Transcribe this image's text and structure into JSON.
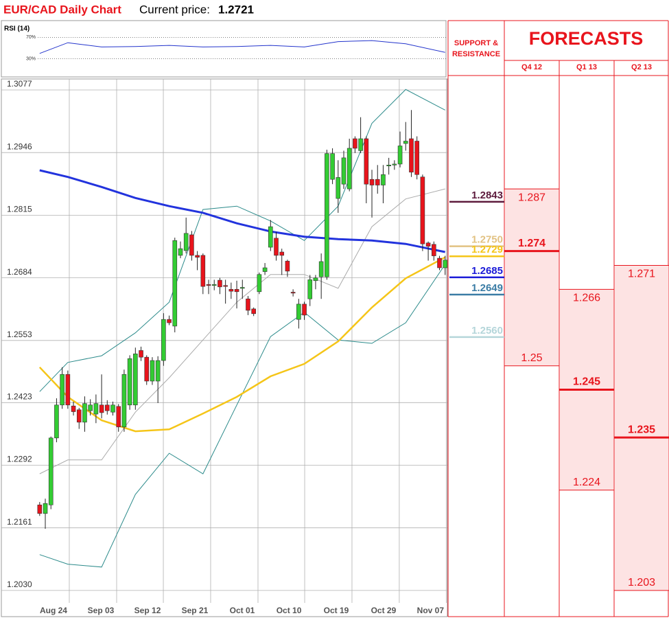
{
  "header": {
    "title": "EUR/CAD Daily Chart",
    "price_label": "Current price:",
    "price": 1.2721
  },
  "chart_data": [
    {
      "type": "line",
      "title": "RSI (14)",
      "x": [
        0,
        5,
        11,
        17,
        23,
        29,
        35,
        41,
        47,
        53,
        59,
        65,
        72
      ],
      "series": [
        {
          "color": "#2233cc",
          "values": [
            40,
            60,
            52,
            53,
            55,
            52,
            53,
            55,
            52,
            62,
            64,
            58,
            42
          ]
        }
      ],
      "xlim": [
        -6.8,
        72.4
      ],
      "ylim": [
        0,
        100
      ],
      "yticks": [
        {
          "value": 70,
          "label": "70%"
        },
        {
          "value": 30,
          "label": "30%"
        }
      ]
    },
    {
      "type": "candlestick",
      "open": [
        1.2209,
        1.2191,
        1.2209,
        1.2349,
        1.2418,
        1.2482,
        1.2416,
        1.2408,
        1.2382,
        1.2406,
        1.2399,
        1.2418,
        1.2418,
        1.2403,
        1.2415,
        1.2372,
        1.2418,
        1.2418,
        1.2532,
        1.2518,
        1.2468,
        1.2468,
        1.2511,
        1.2597,
        1.2583,
        1.2731,
        1.2741,
        1.2774,
        1.2731,
        1.2731,
        1.267,
        1.2668,
        1.2679,
        1.2668,
        1.266,
        1.266,
        1.2662,
        1.264,
        1.2619,
        1.2655,
        1.2697,
        1.2748,
        1.2767,
        1.2738,
        1.2719,
        1.2654,
        1.2597,
        1.2629,
        1.264,
        1.2678,
        1.2686,
        1.2686,
        1.289,
        1.285,
        1.288,
        1.287,
        1.2975,
        1.295,
        1.2975,
        1.289,
        1.289,
        1.2878,
        1.2918,
        1.292,
        1.2922,
        1.2965,
        1.2975,
        1.297,
        1.2895,
        1.2757,
        1.2754,
        1.2725,
        1.2705
      ],
      "high": [
        1.2215,
        1.2222,
        1.2352,
        1.2432,
        1.2497,
        1.249,
        1.2425,
        1.2412,
        1.2436,
        1.243,
        1.244,
        1.2482,
        1.2428,
        1.2425,
        1.242,
        1.2492,
        1.2522,
        1.2538,
        1.254,
        1.2522,
        1.2518,
        1.252,
        1.261,
        1.2605,
        1.2768,
        1.276,
        1.281,
        1.2782,
        1.274,
        1.2735,
        1.268,
        1.268,
        1.2684,
        1.268,
        1.2674,
        1.2678,
        1.268,
        1.2646,
        1.2622,
        1.2695,
        1.2715,
        1.2805,
        1.278,
        1.2745,
        1.2722,
        1.266,
        1.264,
        1.2634,
        1.269,
        1.269,
        1.2735,
        1.2952,
        1.2955,
        1.293,
        1.295,
        1.2975,
        1.298,
        1.302,
        1.298,
        1.291,
        1.292,
        1.292,
        1.2935,
        1.293,
        1.299,
        1.301,
        1.3035,
        1.298,
        1.29,
        1.276,
        1.276,
        1.273,
        1.273
      ],
      "low": [
        1.2186,
        1.2159,
        1.22,
        1.234,
        1.241,
        1.241,
        1.2396,
        1.2368,
        1.2362,
        1.2396,
        1.238,
        1.239,
        1.2398,
        1.2396,
        1.2362,
        1.2362,
        1.2408,
        1.2408,
        1.251,
        1.246,
        1.246,
        1.2422,
        1.25,
        1.2585,
        1.257,
        1.2725,
        1.2735,
        1.272,
        1.27,
        1.265,
        1.265,
        1.2658,
        1.265,
        1.263,
        1.264,
        1.262,
        1.264,
        1.2606,
        1.2604,
        1.265,
        1.269,
        1.274,
        1.272,
        1.269,
        1.2686,
        1.2645,
        1.2578,
        1.2596,
        1.2625,
        1.266,
        1.264,
        1.268,
        1.288,
        1.282,
        1.287,
        1.2865,
        1.2945,
        1.2945,
        1.284,
        1.281,
        1.286,
        1.284,
        1.29,
        1.291,
        1.2915,
        1.295,
        1.2895,
        1.289,
        1.274,
        1.272,
        1.272,
        1.27,
        1.269
      ],
      "close": [
        1.2191,
        1.2212,
        1.2349,
        1.2418,
        1.2482,
        1.2418,
        1.2404,
        1.2382,
        1.2421,
        1.2418,
        1.2421,
        1.2402,
        1.2406,
        1.2418,
        1.2372,
        1.2482,
        1.2515,
        1.2525,
        1.2518,
        1.2468,
        1.2511,
        1.2511,
        1.2597,
        1.259,
        1.2762,
        1.2745,
        1.2777,
        1.2731,
        1.2727,
        1.2666,
        1.2668,
        1.267,
        1.2665,
        1.2666,
        1.2656,
        1.2655,
        1.2664,
        1.2616,
        1.2609,
        1.2691,
        1.2705,
        1.2791,
        1.2731,
        1.2731,
        1.2698,
        1.2652,
        1.2629,
        1.2606,
        1.268,
        1.2684,
        1.2718,
        1.2944,
        1.2944,
        1.2894,
        1.2935,
        1.2955,
        1.2955,
        1.2975,
        1.288,
        1.2878,
        1.2878,
        1.29,
        1.292,
        1.2922,
        1.296,
        1.297,
        1.2905,
        1.29,
        1.2755,
        1.275,
        1.273,
        1.2705,
        1.2721
      ],
      "up_color": "#33cc33",
      "down_color": "#e8141c",
      "series": [
        {
          "color": "#aaaaaa",
          "x": [
            0,
            5,
            11,
            17,
            23,
            29,
            35,
            41,
            47,
            53,
            59,
            65,
            72
          ],
          "values": [
            1.2274,
            1.2303,
            1.2303,
            1.2403,
            1.2475,
            1.2554,
            1.2633,
            1.2691,
            1.2691,
            1.2662,
            1.2791,
            1.2849,
            1.287
          ]
        },
        {
          "color": "#2a8a8a",
          "x": [
            0,
            5,
            11,
            17,
            23,
            29,
            35,
            41,
            47,
            53,
            59,
            65,
            72
          ],
          "values": [
            1.2446,
            1.2507,
            1.2521,
            1.2569,
            1.2633,
            1.2827,
            1.2834,
            1.2803,
            1.2762,
            1.2834,
            1.3007,
            1.3078,
            1.3035
          ]
        },
        {
          "color": "#2a8a8a",
          "x": [
            0,
            5,
            11,
            17,
            23,
            29,
            35,
            41,
            47,
            53,
            59,
            65,
            72
          ],
          "values": [
            1.2105,
            1.2085,
            1.2079,
            1.2231,
            1.2317,
            1.2274,
            1.2418,
            1.2561,
            1.2612,
            1.2554,
            1.2547,
            1.259,
            1.2712
          ]
        },
        {
          "color": "#f5c518",
          "x": [
            0,
            5,
            11,
            17,
            23,
            29,
            35,
            41,
            47,
            53,
            59,
            65,
            72
          ],
          "values": [
            1.2497,
            1.2435,
            1.2386,
            1.2363,
            1.2367,
            1.24,
            1.2435,
            1.2478,
            1.2504,
            1.2551,
            1.2622,
            1.2683,
            1.2727
          ]
        },
        {
          "color": "#2233dd",
          "x": [
            0,
            5,
            11,
            17,
            23,
            29,
            35,
            41,
            47,
            53,
            59,
            65,
            72
          ],
          "values": [
            1.2909,
            1.2895,
            1.2874,
            1.2851,
            1.2834,
            1.282,
            1.2798,
            1.2781,
            1.277,
            1.2765,
            1.2762,
            1.2755,
            1.2738
          ]
        }
      ],
      "xlim": [
        -6.8,
        72.4
      ],
      "ylim": [
        1.2004,
        1.31
      ],
      "xticks": [
        {
          "value": 5.26,
          "label": "Aug 24"
        },
        {
          "value": 13.67,
          "label": "Sep 03"
        },
        {
          "value": 21.96,
          "label": "Sep 12"
        },
        {
          "value": 30.36,
          "label": "Sep 21"
        },
        {
          "value": 38.77,
          "label": "Oct 01"
        },
        {
          "value": 47.06,
          "label": "Oct 10"
        },
        {
          "value": 55.46,
          "label": "Oct 19"
        },
        {
          "value": 63.86,
          "label": "Oct 29"
        },
        {
          "value": 72.2,
          "label": "Nov 07"
        }
      ],
      "yticks": [
        1.3077,
        1.2946,
        1.2815,
        1.2684,
        1.2553,
        1.2423,
        1.2292,
        1.2161,
        {
          "value": 1.203,
          "label": "1.2030"
        }
      ],
      "grid": true,
      "levels_title": "SUPPORT & RESISTANCE",
      "levels": [
        {
          "value": 1.2843,
          "color": "#5c1a3c"
        },
        {
          "value": 1.275,
          "label": "1.2750",
          "color": "#e2c283"
        },
        {
          "value": 1.2729,
          "color": "#f5c518"
        },
        {
          "value": 1.2685,
          "color": "#1a1ad8"
        },
        {
          "value": 1.2649,
          "color": "#3a7ca5"
        },
        {
          "value": 1.256,
          "label": "1.2560",
          "color": "#b5d6da"
        }
      ]
    },
    {
      "type": "range",
      "title": "FORECASTS",
      "categories": [
        "Q4 12",
        "Q1 13",
        "Q2 13"
      ],
      "high": [
        1.287,
        1.266,
        1.271
      ],
      "mid": [
        1.274,
        1.245,
        1.235
      ],
      "low": [
        1.25,
        1.224,
        1.203
      ],
      "color": "#e8141c",
      "fill": "#fde3e3",
      "ylim": [
        1.2004,
        1.31
      ]
    }
  ]
}
